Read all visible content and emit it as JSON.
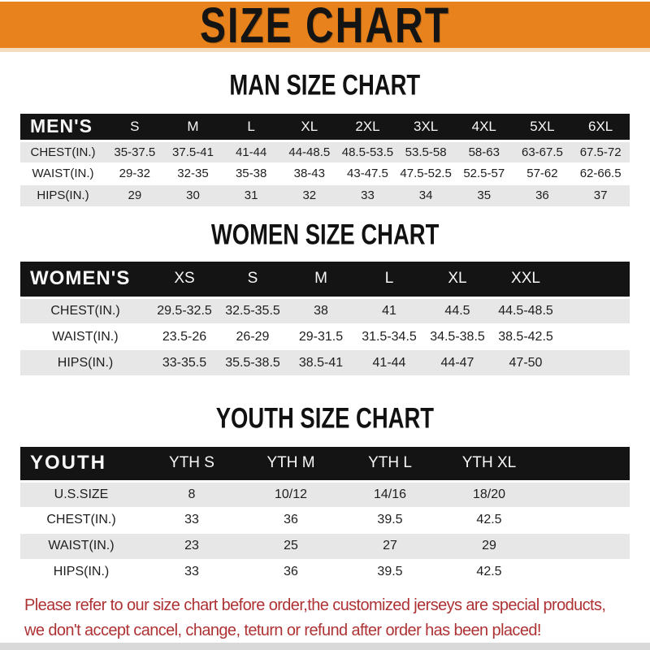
{
  "banner": {
    "title": "SIZE CHART"
  },
  "colors": {
    "banner_bg": "#E8821C",
    "table_header_bg": "#141414",
    "stripe_bg": "#E7E7E7",
    "disclaimer_text": "#AE3234"
  },
  "sections": [
    {
      "heading": "MAN SIZE CHART",
      "header_label": "MEN'S",
      "columns": [
        "S",
        "M",
        "L",
        "XL",
        "2XL",
        "3XL",
        "4XL",
        "5XL",
        "6XL"
      ],
      "rows": [
        {
          "label": "CHEST(IN.)",
          "values": [
            "35-37.5",
            "37.5-41",
            "41-44",
            "44-48.5",
            "48.5-53.5",
            "53.5-58",
            "58-63",
            "63-67.5",
            "67.5-72"
          ]
        },
        {
          "label": "WAIST(IN.)",
          "values": [
            "29-32",
            "32-35",
            "35-38",
            "38-43",
            "43-47.5",
            "47.5-52.5",
            "52.5-57",
            "57-62",
            "62-66.5"
          ]
        },
        {
          "label": "HIPS(IN.)",
          "values": [
            "29",
            "30",
            "31",
            "32",
            "33",
            "34",
            "35",
            "36",
            "37"
          ]
        }
      ]
    },
    {
      "heading": "WOMEN SIZE CHART",
      "header_label": "WOMEN'S",
      "columns": [
        "XS",
        "S",
        "M",
        "L",
        "XL",
        "XXL"
      ],
      "rows": [
        {
          "label": "CHEST(IN.)",
          "values": [
            "29.5-32.5",
            "32.5-35.5",
            "38",
            "41",
            "44.5",
            "44.5-48.5"
          ]
        },
        {
          "label": "WAIST(IN.)",
          "values": [
            "23.5-26",
            "26-29",
            "29-31.5",
            "31.5-34.5",
            "34.5-38.5",
            "38.5-42.5"
          ]
        },
        {
          "label": "HIPS(IN.)",
          "values": [
            "33-35.5",
            "35.5-38.5",
            "38.5-41",
            "41-44",
            "44-47",
            "47-50"
          ]
        }
      ]
    },
    {
      "heading": "YOUTH SIZE CHART",
      "header_label": "YOUTH",
      "columns": [
        "YTH S",
        "YTH M",
        "YTH L",
        "YTH XL"
      ],
      "rows": [
        {
          "label": "U.S.SIZE",
          "values": [
            "8",
            "10/12",
            "14/16",
            "18/20"
          ]
        },
        {
          "label": "CHEST(IN.)",
          "values": [
            "33",
            "36",
            "39.5",
            "42.5"
          ]
        },
        {
          "label": "WAIST(IN.)",
          "values": [
            "23",
            "25",
            "27",
            "29"
          ]
        },
        {
          "label": "HIPS(IN.)",
          "values": [
            "33",
            "36",
            "39.5",
            "42.5"
          ]
        }
      ]
    }
  ],
  "footer": {
    "line1": "Please refer to our size chart before order,the customized jerseys are special products,",
    "line2": "we don't accept cancel, change, teturn or refund after order has been placed!"
  }
}
